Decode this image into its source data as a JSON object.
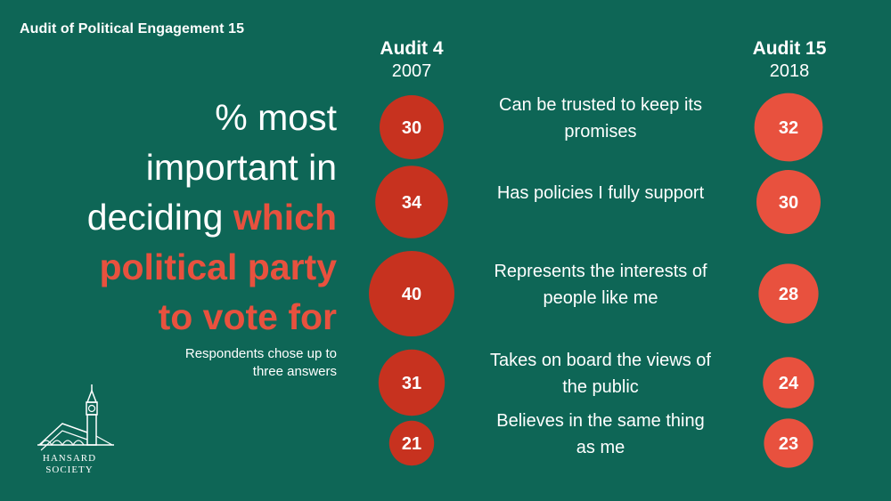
{
  "header": {
    "report_title": "Audit of Political Engagement 15"
  },
  "headline": {
    "line1": "% most",
    "line2": "important in",
    "line3_plain": "deciding ",
    "line3_accent": "which",
    "line4": "political party",
    "line5": "to vote for"
  },
  "subnote": {
    "line1": "Respondents chose up to",
    "line2": "three answers"
  },
  "logo": {
    "line1": "HANSARD",
    "line2": "SOCIETY"
  },
  "colors": {
    "background": "#0e6656",
    "bubble_dark": "#c7321f",
    "bubble_light": "#e8513e",
    "accent_text": "#e8513e"
  },
  "chart_data": {
    "type": "bubble",
    "title": "% most important in deciding which political party to vote for",
    "series": [
      {
        "name": "Audit 4",
        "year": "2007",
        "values": [
          30,
          34,
          40,
          31,
          21
        ]
      },
      {
        "name": "Audit 15",
        "year": "2018",
        "values": [
          32,
          30,
          28,
          24,
          23
        ]
      }
    ],
    "categories": [
      [
        "Can be trusted to keep its",
        "promises"
      ],
      [
        "Has policies I fully support"
      ],
      [
        "Represents the interests of",
        "people like me"
      ],
      [
        "Takes on board the views of",
        "the public"
      ],
      [
        "Believes in the same thing",
        "as me"
      ]
    ]
  }
}
